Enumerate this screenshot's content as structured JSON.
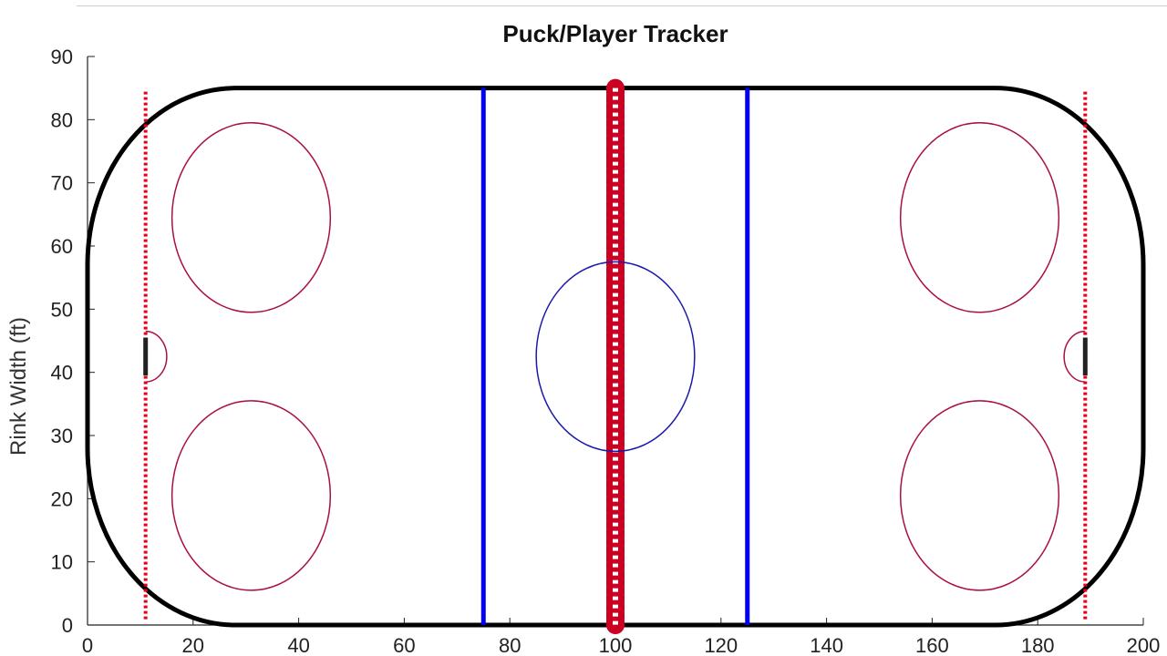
{
  "chart_data": {
    "type": "scatter",
    "title": "Puck/Player Tracker",
    "xlabel": "",
    "ylabel": "Rink Width (ft)",
    "xlim": [
      0,
      200
    ],
    "ylim": [
      0,
      90
    ],
    "xticks": [
      0,
      20,
      40,
      60,
      80,
      100,
      120,
      140,
      160,
      180,
      200
    ],
    "yticks": [
      0,
      10,
      20,
      30,
      40,
      50,
      60,
      70,
      80,
      90
    ],
    "grid": false,
    "rink": {
      "boards": {
        "x": [
          0,
          200
        ],
        "y": [
          0,
          85
        ],
        "corner_radius": 28
      },
      "goal_lines_x": [
        11,
        189
      ],
      "blue_lines_x": [
        75,
        125
      ],
      "center_line_x": 100,
      "center_circle": {
        "x": 100,
        "y": 42.5,
        "r": 15
      },
      "faceoff_circles": [
        {
          "x": 31,
          "y": 64.5,
          "r": 15
        },
        {
          "x": 31,
          "y": 20.5,
          "r": 15
        },
        {
          "x": 169,
          "y": 64.5,
          "r": 15
        },
        {
          "x": 169,
          "y": 20.5,
          "r": 15
        }
      ],
      "creases": [
        {
          "x": 11,
          "y": 42.5,
          "r": 4,
          "side": "right"
        },
        {
          "x": 189,
          "y": 42.5,
          "r": 4,
          "side": "left"
        }
      ],
      "goals": [
        {
          "x": 11,
          "y1": 39.5,
          "y2": 45.5
        },
        {
          "x": 189,
          "y1": 39.5,
          "y2": 45.5
        }
      ]
    },
    "colors": {
      "boards": "#000000",
      "goal_line": "#e8001c",
      "blue_line": "#0000ee",
      "center_line": "#cc0022",
      "center_circle": "#1a1aaa",
      "faceoff_circle": "#aa1040",
      "crease": "#aa1040",
      "goal": "#222222"
    }
  }
}
